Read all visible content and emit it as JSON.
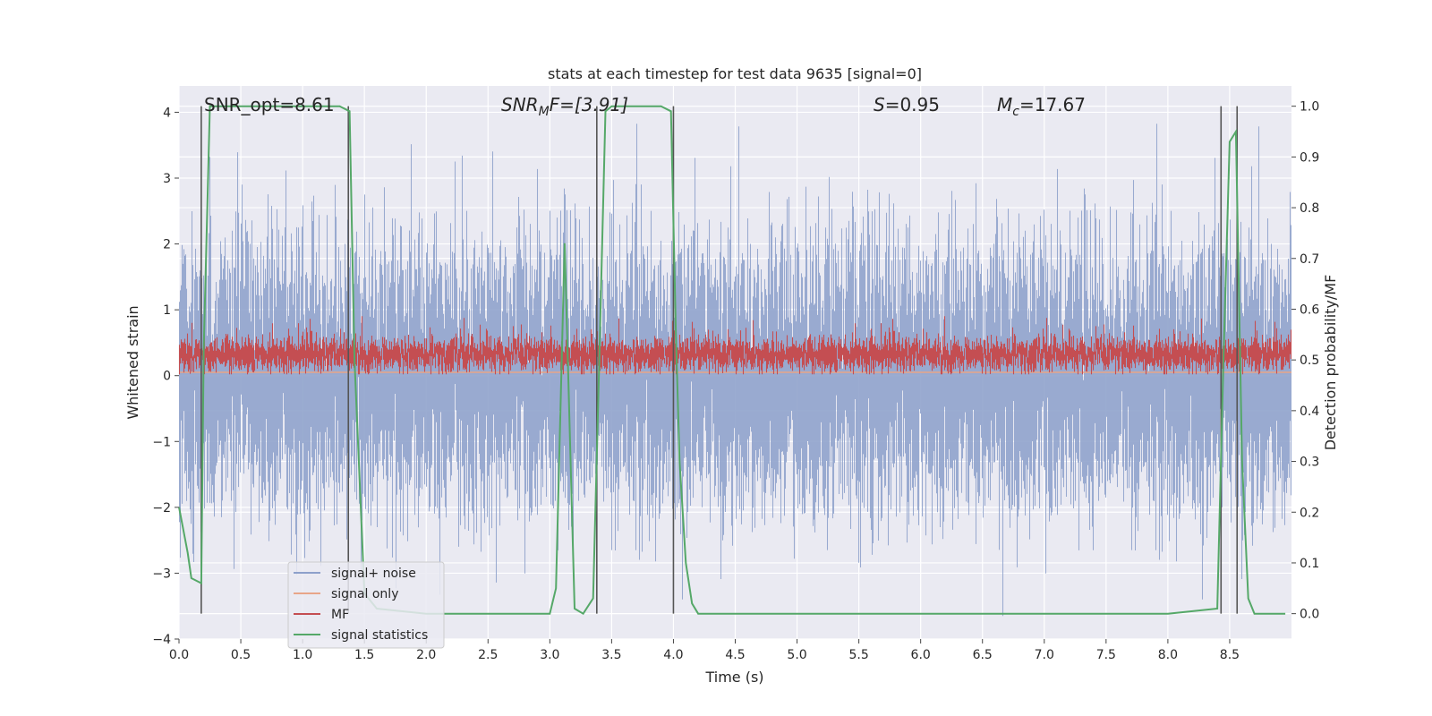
{
  "chart_data": {
    "type": "line",
    "title": "stats at each timestep for test data 9635 [signal=0]",
    "xlabel": "Time (s)",
    "ylabel": "Whitened strain",
    "y2label": "Detection probability/MF",
    "xlim": [
      0,
      9.0
    ],
    "ylim": [
      -4,
      4.4
    ],
    "y2lim": [
      -0.05,
      1.04
    ],
    "xticks": [
      "0.0",
      "0.5",
      "1.0",
      "1.5",
      "2.0",
      "2.5",
      "3.0",
      "3.5",
      "4.0",
      "4.5",
      "5.0",
      "5.5",
      "6.0",
      "6.5",
      "7.0",
      "7.5",
      "8.0",
      "8.5"
    ],
    "yticks": [
      "4",
      "3",
      "2",
      "1",
      "0",
      "−1",
      "−2",
      "−3",
      "−4"
    ],
    "y2ticks": [
      "1.0",
      "0.9",
      "0.8",
      "0.7",
      "0.6",
      "0.5",
      "0.4",
      "0.3",
      "0.2",
      "0.1",
      "0.0"
    ],
    "grid": true,
    "legend_position": "lower-left",
    "annotations": {
      "snr_opt": "SNR_opt=8.61",
      "snr_mf_name": "SNR",
      "snr_mf_sub": "M",
      "snr_mf_rest": "F=[3.91]",
      "s_name": "S",
      "s_rest": "=0.95",
      "mc_name": "M",
      "mc_sub": "c",
      "mc_rest": "=17.67"
    },
    "series": [
      {
        "name": "signal+ noise",
        "color": "#8da0cb",
        "noise_amplitude": 1.0
      },
      {
        "name": "signal only",
        "color": "#e8a588",
        "values_y": 0.05
      },
      {
        "name": "MF",
        "color": "#c44e52",
        "y_range": [
          0.0,
          1.0
        ]
      },
      {
        "name": "signal statistics",
        "color": "#55a868",
        "x": [
          0.0,
          0.07,
          0.1,
          0.18,
          0.2,
          0.25,
          0.3,
          0.5,
          1.0,
          1.3,
          1.38,
          1.42,
          1.5,
          1.6,
          2.0,
          2.5,
          3.0,
          3.05,
          3.12,
          3.2,
          3.27,
          3.35,
          3.4,
          3.45,
          3.5,
          3.9,
          3.98,
          4.02,
          4.05,
          4.1,
          4.15,
          4.2,
          4.5,
          5.0,
          6.0,
          7.0,
          8.0,
          8.4,
          8.45,
          8.5,
          8.55,
          8.6,
          8.65,
          8.7,
          8.8,
          8.95
        ],
        "values": [
          0.21,
          0.12,
          0.07,
          0.06,
          0.52,
          1.0,
          1.0,
          1.0,
          1.0,
          1.0,
          0.99,
          0.5,
          0.04,
          0.01,
          0.0,
          0.0,
          0.0,
          0.05,
          0.73,
          0.01,
          0.0,
          0.03,
          0.5,
          0.99,
          1.0,
          1.0,
          0.99,
          0.55,
          0.3,
          0.1,
          0.02,
          0.0,
          0.0,
          0.0,
          0.0,
          0.0,
          0.0,
          0.01,
          0.5,
          0.93,
          0.95,
          0.3,
          0.03,
          0.0,
          0.0,
          0.0
        ]
      }
    ],
    "vertical_markers_x": [
      0.18,
      1.37,
      3.38,
      4.0,
      8.43,
      8.56
    ]
  }
}
